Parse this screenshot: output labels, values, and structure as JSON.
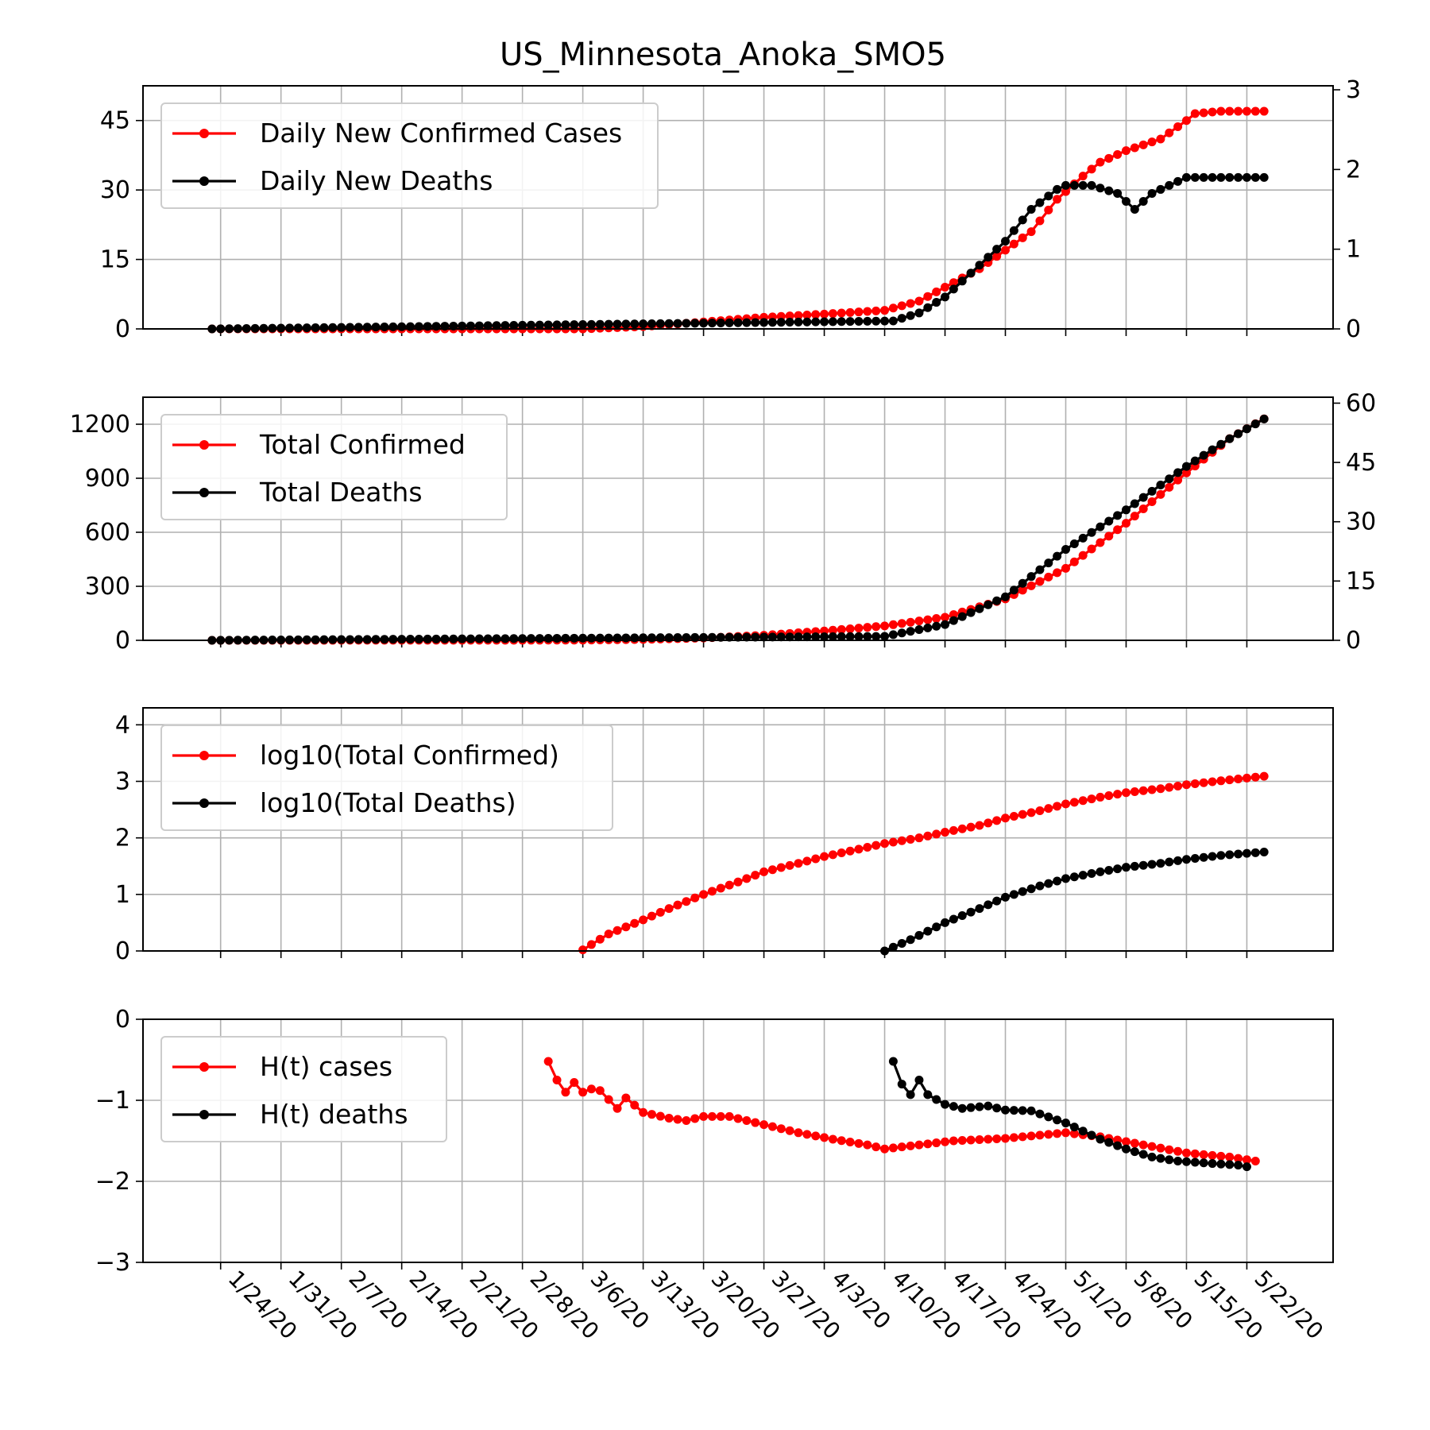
{
  "figure": {
    "title": "US_Minnesota_Anoka_SMO5",
    "colors": {
      "cases": "#ff0000",
      "deaths": "#000000",
      "grid": "#b0b0b0",
      "axis": "#000000"
    }
  },
  "chart_data": [
    {
      "type": "line",
      "ylim": [
        0,
        52.5
      ],
      "y_ticks": [
        "0",
        "15",
        "30",
        "45"
      ],
      "y2lim": [
        0,
        3.05
      ],
      "y2_ticks": [
        "0",
        "1",
        "2",
        "3"
      ],
      "grid": true,
      "legend_position": "top-left",
      "series": [
        {
          "name": "Daily New Confirmed Cases",
          "axis": "left",
          "color": "#ff0000",
          "x": [
            "1/23/20",
            "3/6/20",
            "3/13/20",
            "3/20/20",
            "3/27/20",
            "4/3/20",
            "4/10/20",
            "4/14/20",
            "4/17/20",
            "4/21/20",
            "4/24/20",
            "4/27/20",
            "4/30/20",
            "5/3/20",
            "5/5/20",
            "5/8/20",
            "5/12/20",
            "5/15/20",
            "5/16/20",
            "5/19/20",
            "5/21/20",
            "5/24/20"
          ],
          "y": [
            0,
            0,
            0.5,
            1.5,
            2.5,
            3.2,
            4,
            6,
            9,
            13,
            17,
            21,
            28,
            33,
            36,
            38.5,
            41,
            45,
            46.5,
            47,
            47,
            47
          ]
        },
        {
          "name": "Daily New Deaths",
          "axis": "right",
          "color": "#000000",
          "x": [
            "1/23/20",
            "4/11/20",
            "4/14/20",
            "4/17/20",
            "4/20/20",
            "4/24/20",
            "4/27/20",
            "4/30/20",
            "5/1/20",
            "5/4/20",
            "5/7/20",
            "5/9/20",
            "5/11/20",
            "5/13/20",
            "5/15/20",
            "5/18/20",
            "5/20/20",
            "5/23/20",
            "5/24/20"
          ],
          "y": [
            0,
            0.1,
            0.2,
            0.4,
            0.7,
            1.1,
            1.5,
            1.75,
            1.8,
            1.8,
            1.7,
            1.5,
            1.7,
            1.8,
            1.9,
            1.9,
            1.9,
            1.9,
            1.9
          ]
        }
      ]
    },
    {
      "type": "line",
      "ylim": [
        0,
        1350
      ],
      "y_ticks": [
        "0",
        "300",
        "600",
        "900",
        "1200"
      ],
      "y2lim": [
        0,
        61.5
      ],
      "y2_ticks": [
        "0",
        "15",
        "30",
        "45",
        "60"
      ],
      "grid": true,
      "legend_position": "top-left",
      "series": [
        {
          "name": "Total Confirmed",
          "axis": "left",
          "color": "#ff0000",
          "x": [
            "1/23/20",
            "3/6/20",
            "3/13/20",
            "3/20/20",
            "3/27/20",
            "4/3/20",
            "4/10/20",
            "4/17/20",
            "4/24/20",
            "5/1/20",
            "5/8/20",
            "5/15/20",
            "5/20/20",
            "5/24/20"
          ],
          "y": [
            0,
            1,
            5,
            13,
            28,
            52,
            80,
            128,
            230,
            400,
            650,
            930,
            1120,
            1230
          ]
        },
        {
          "name": "Total Deaths",
          "axis": "right",
          "color": "#000000",
          "x": [
            "1/23/20",
            "4/10/20",
            "4/17/20",
            "4/24/20",
            "5/1/20",
            "5/8/20",
            "5/15/20",
            "5/20/20",
            "5/24/20"
          ],
          "y": [
            0,
            1,
            4,
            11,
            23,
            33,
            44,
            51,
            56
          ]
        }
      ]
    },
    {
      "type": "line",
      "ylim": [
        0,
        4.3
      ],
      "y_ticks": [
        "0",
        "1",
        "2",
        "3",
        "4"
      ],
      "grid": true,
      "legend_position": "top-left",
      "series": [
        {
          "name": "log10(Total Confirmed)",
          "color": "#ff0000",
          "x": [
            "3/6/20",
            "3/9/20",
            "3/13/20",
            "3/16/20",
            "3/20/20",
            "3/24/20",
            "3/27/20",
            "3/31/20",
            "4/3/20",
            "4/7/20",
            "4/10/20",
            "4/14/20",
            "4/17/20",
            "4/21/20",
            "4/24/20",
            "4/28/20",
            "5/1/20",
            "5/5/20",
            "5/8/20",
            "5/12/20",
            "5/15/20",
            "5/19/20",
            "5/24/20"
          ],
          "y": [
            0.02,
            0.3,
            0.55,
            0.75,
            1.0,
            1.22,
            1.4,
            1.55,
            1.67,
            1.8,
            1.9,
            2.0,
            2.1,
            2.22,
            2.35,
            2.48,
            2.6,
            2.72,
            2.8,
            2.87,
            2.94,
            3.01,
            3.09
          ]
        },
        {
          "name": "log10(Total Deaths)",
          "color": "#000000",
          "x": [
            "4/10/20",
            "4/13/20",
            "4/17/20",
            "4/21/20",
            "4/24/20",
            "4/28/20",
            "5/1/20",
            "5/5/20",
            "5/8/20",
            "5/12/20",
            "5/15/20",
            "5/19/20",
            "5/24/20"
          ],
          "y": [
            0,
            0.2,
            0.5,
            0.75,
            0.95,
            1.15,
            1.28,
            1.4,
            1.48,
            1.55,
            1.62,
            1.69,
            1.75
          ]
        }
      ]
    },
    {
      "type": "line",
      "ylim": [
        -3,
        0
      ],
      "y_ticks": [
        "−3",
        "−2",
        "−1",
        "0"
      ],
      "grid": true,
      "legend_position": "top-left",
      "series": [
        {
          "name": "H(t) cases",
          "color": "#ff0000",
          "x": [
            "3/2/20",
            "3/3/20",
            "3/4/20",
            "3/5/20",
            "3/6/20",
            "3/7/20",
            "3/8/20",
            "3/10/20",
            "3/11/20",
            "3/13/20",
            "3/16/20",
            "3/18/20",
            "3/20/20",
            "3/23/20",
            "3/27/20",
            "3/31/20",
            "4/4/20",
            "4/8/20",
            "4/10/20",
            "4/14/20",
            "4/18/20",
            "4/24/20",
            "4/28/20",
            "5/1/20",
            "5/5/20",
            "5/10/20",
            "5/15/20",
            "5/20/20",
            "5/23/20"
          ],
          "y": [
            -0.52,
            -0.75,
            -0.9,
            -0.78,
            -0.9,
            -0.86,
            -0.88,
            -1.1,
            -0.97,
            -1.15,
            -1.22,
            -1.25,
            -1.2,
            -1.2,
            -1.3,
            -1.4,
            -1.48,
            -1.55,
            -1.6,
            -1.55,
            -1.5,
            -1.47,
            -1.43,
            -1.4,
            -1.45,
            -1.55,
            -1.65,
            -1.7,
            -1.75
          ]
        },
        {
          "name": "H(t) deaths",
          "color": "#000000",
          "x": [
            "4/11/20",
            "4/12/20",
            "4/13/20",
            "4/14/20",
            "4/15/20",
            "4/17/20",
            "4/19/20",
            "4/22/20",
            "4/24/20",
            "4/27/20",
            "5/1/20",
            "5/5/20",
            "5/8/20",
            "5/11/20",
            "5/14/20",
            "5/18/20",
            "5/21/20",
            "5/22/20"
          ],
          "y": [
            -0.52,
            -0.8,
            -0.93,
            -0.75,
            -0.93,
            -1.05,
            -1.1,
            -1.07,
            -1.12,
            -1.13,
            -1.28,
            -1.48,
            -1.6,
            -1.7,
            -1.75,
            -1.78,
            -1.8,
            -1.82
          ]
        }
      ]
    }
  ],
  "x_axis": {
    "start": "1/23/20",
    "end": "5/24/20",
    "xlim": [
      "1/15/20",
      "6/1/20"
    ],
    "tick_labels": [
      "1/24/20",
      "1/31/20",
      "2/7/20",
      "2/14/20",
      "2/21/20",
      "2/28/20",
      "3/6/20",
      "3/13/20",
      "3/20/20",
      "3/27/20",
      "4/3/20",
      "4/10/20",
      "4/17/20",
      "4/24/20",
      "5/1/20",
      "5/8/20",
      "5/15/20",
      "5/22/20"
    ]
  }
}
